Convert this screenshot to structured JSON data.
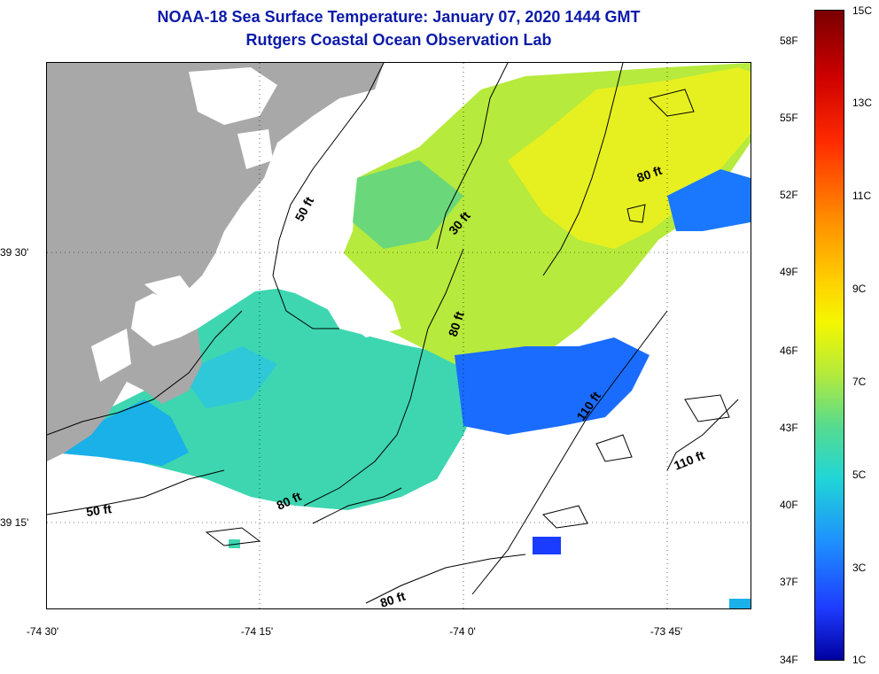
{
  "header": {
    "title": "NOAA-18 Sea Surface Temperature:  January 07, 2020 1444 GMT",
    "subtitle": "Rutgers Coastal Ocean Observation Lab"
  },
  "map": {
    "lat_labels": [
      "39 30'",
      "39 15'"
    ],
    "lon_labels": [
      "-74 30'",
      "-74 15'",
      "-74 0'",
      "-73 45'"
    ],
    "contour_labels": [
      "50 ft",
      "30 ft",
      "80 ft",
      "80 ft",
      "110 ft",
      "110 ft",
      "80 ft",
      "50 ft",
      "80 ft"
    ],
    "colors": {
      "land": "#a8a8a8",
      "frame": "#000000",
      "warm": "#e8f020",
      "mid": "#3dd6b0",
      "cool": "#1ab0e8",
      "cold": "#1a3cff"
    }
  },
  "colorbar": {
    "fahrenheit": [
      "58F",
      "55F",
      "52F",
      "49F",
      "46F",
      "43F",
      "40F",
      "37F",
      "34F"
    ],
    "celsius": [
      "15C",
      "13C",
      "11C",
      "9C",
      "7C",
      "5C",
      "3C",
      "1C"
    ]
  }
}
